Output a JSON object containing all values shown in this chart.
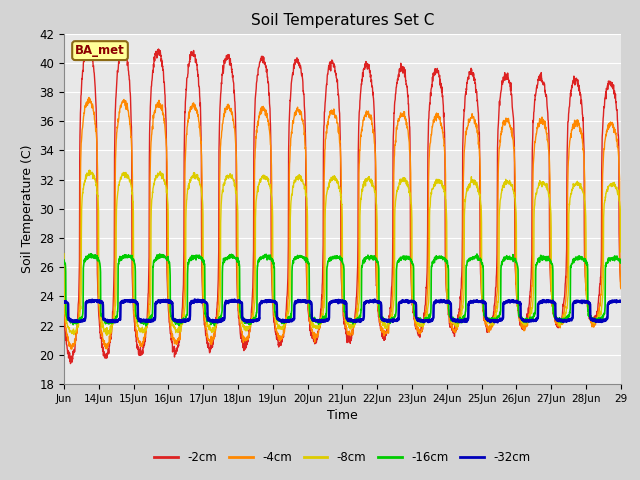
{
  "title": "Soil Temperatures Set C",
  "xlabel": "Time",
  "ylabel": "Soil Temperature (C)",
  "ylim": [
    18,
    42
  ],
  "fig_bg": "#d4d4d4",
  "axes_bg": "#e8e8e8",
  "grid_color": "white",
  "label_text": "BA_met",
  "series": [
    "-2cm",
    "-4cm",
    "-8cm",
    "-16cm",
    "-32cm"
  ],
  "colors": [
    "#dd2222",
    "#ff8800",
    "#ddcc00",
    "#00cc00",
    "#0000bb"
  ],
  "x_tick_labels": [
    "Jun",
    "14Jun",
    "15Jun",
    "16Jun",
    "17Jun",
    "18Jun",
    "19Jun",
    "20Jun",
    "21Jun",
    "22Jun",
    "23Jun",
    "24Jun",
    "25Jun",
    "26Jun",
    "27Jun",
    "28Jun",
    "29"
  ],
  "n_days": 16,
  "pts_per_day": 144
}
